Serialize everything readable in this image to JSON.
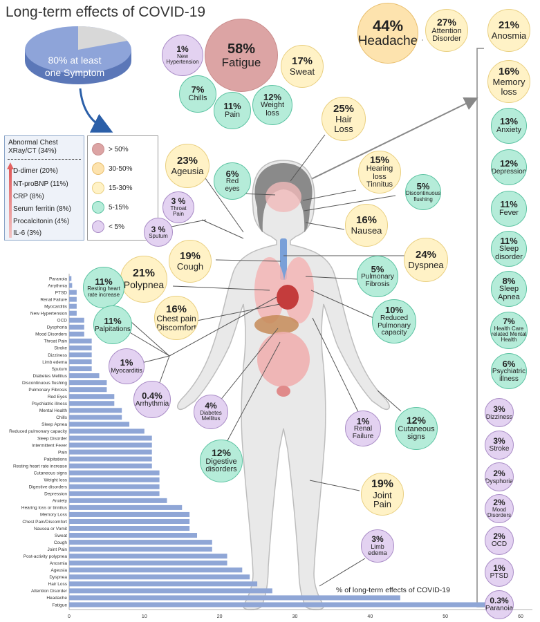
{
  "title": "Long-term effects of COVID-19",
  "pie": {
    "label_line1": "80% at least",
    "label_line2": "one Symptom",
    "value": 80
  },
  "lab_box": {
    "title_line1": "Abnormal Chest",
    "title_line2": "XRay/CT (34%)",
    "items": [
      "D-dimer (20%)",
      "NT-proBNP (11%)",
      "CRP (8%)",
      "Serum ferritin (8%)",
      "Procalcitonin (4%)",
      "IL-6 (3%)"
    ]
  },
  "legend": [
    {
      "label": "> 50%",
      "color": "#dca4a4"
    },
    {
      "label": "30-50%",
      "color": "#fde3ae"
    },
    {
      "label": "15-30%",
      "color": "#fff2c6"
    },
    {
      "label": "5-15%",
      "color": "#b5ecd9"
    },
    {
      "label": "< 5%",
      "color": "#e3d2f1"
    }
  ],
  "bubbles": [
    {
      "pct": "44%",
      "label": "Headache",
      "lines": []
    },
    {
      "pct": "27%",
      "label": "Attention",
      "lines": [
        "Disorder"
      ]
    },
    {
      "pct": "21%",
      "label": "Anosmia",
      "lines": []
    },
    {
      "pct": "16%",
      "label": "Memory",
      "lines": [
        "loss"
      ]
    },
    {
      "pct": "13%",
      "label": "Anxiety",
      "lines": []
    },
    {
      "pct": "12%",
      "label": "Depression",
      "lines": []
    },
    {
      "pct": "11%",
      "label": "Fever",
      "lines": []
    },
    {
      "pct": "11%",
      "label": "Sleep",
      "lines": [
        "disorder"
      ]
    },
    {
      "pct": "8%",
      "label": "Sleep",
      "lines": [
        "Apnea"
      ]
    },
    {
      "pct": "7%",
      "label": "Health Care",
      "lines": [
        "related Mental",
        "Health"
      ]
    },
    {
      "pct": "6%",
      "label": "Psychiatric",
      "lines": [
        "illness"
      ]
    },
    {
      "pct": "3%",
      "label": "Dizziness",
      "lines": []
    },
    {
      "pct": "3%",
      "label": "Stroke",
      "lines": []
    },
    {
      "pct": "2%",
      "label": "Dysphoria",
      "lines": []
    },
    {
      "pct": "2%",
      "label": "Mood",
      "lines": [
        "Disorders"
      ]
    },
    {
      "pct": "2%",
      "label": "OCD",
      "lines": []
    },
    {
      "pct": "1%",
      "label": "PTSD",
      "lines": []
    },
    {
      "pct": "0.3%",
      "label": "Paranoia",
      "lines": []
    },
    {
      "pct": "58%",
      "label": "Fatigue",
      "lines": []
    },
    {
      "pct": "1%",
      "label": "New",
      "lines": [
        "Hypertension"
      ]
    },
    {
      "pct": "17%",
      "label": "Sweat",
      "lines": []
    },
    {
      "pct": "7%",
      "label": "Chills",
      "lines": []
    },
    {
      "pct": "11%",
      "label": "Pain",
      "lines": []
    },
    {
      "pct": "12%",
      "label": "Weight",
      "lines": [
        "loss"
      ]
    },
    {
      "pct": "25%",
      "label": "Hair",
      "lines": [
        "Loss"
      ]
    },
    {
      "pct": "23%",
      "label": "Ageusia",
      "lines": []
    },
    {
      "pct": "6%",
      "label": "Red",
      "lines": [
        "eyes"
      ]
    },
    {
      "pct": "15%",
      "label": "Hearing loss",
      "lines": [
        "Tinnitus"
      ]
    },
    {
      "pct": "5%",
      "label": "Discontinuous",
      "lines": [
        "flushing"
      ]
    },
    {
      "pct": "3 %",
      "label": "Throat",
      "lines": [
        "Pain"
      ]
    },
    {
      "pct": "3 %",
      "label": "Sputum",
      "lines": []
    },
    {
      "pct": "16%",
      "label": "Nausea",
      "lines": []
    },
    {
      "pct": "19%",
      "label": "Cough",
      "lines": []
    },
    {
      "pct": "24%",
      "label": "Dyspnea",
      "lines": []
    },
    {
      "pct": "21%",
      "label": "Polypnea",
      "lines": []
    },
    {
      "pct": "11%",
      "label": "Resting heart",
      "lines": [
        "rate increase"
      ]
    },
    {
      "pct": "5%",
      "label": "Pulmonary",
      "lines": [
        "Fibrosis"
      ]
    },
    {
      "pct": "16%",
      "label": "Chest pain",
      "lines": [
        "Discomfort"
      ]
    },
    {
      "pct": "10%",
      "label": "Reduced",
      "lines": [
        "Pulmonary",
        "capacity"
      ]
    },
    {
      "pct": "11%",
      "label": "Palpitations",
      "lines": []
    },
    {
      "pct": "1%",
      "label": "Myocarditis",
      "lines": []
    },
    {
      "pct": "0.4%",
      "label": "Arrhythmia",
      "lines": []
    },
    {
      "pct": "4%",
      "label": "Diabetes",
      "lines": [
        "Mellitus"
      ]
    },
    {
      "pct": "1%",
      "label": "Renal",
      "lines": [
        "Failure"
      ]
    },
    {
      "pct": "12%",
      "label": "Cutaneous",
      "lines": [
        "signs"
      ]
    },
    {
      "pct": "12%",
      "label": "Digestive",
      "lines": [
        "disorders"
      ]
    },
    {
      "pct": "19%",
      "label": "Joint",
      "lines": [
        "Pain"
      ]
    },
    {
      "pct": "3%",
      "label": "Limb",
      "lines": [
        "edema"
      ]
    }
  ],
  "chart_data": {
    "type": "bar",
    "orientation": "horizontal",
    "title": "% of long-term effects of COVID-19",
    "xlim": [
      0,
      60
    ],
    "xticks": [
      0,
      10,
      20,
      30,
      40,
      50,
      60
    ],
    "categories": [
      "Paranoia",
      "Arrythmia",
      "PTSD",
      "Renal Failure",
      "Myocarditis",
      "New Hypertension",
      "OCD",
      "Dysphoria",
      "Mood Disorders",
      "Throat Pain",
      "Stroke",
      "Dizziness",
      "Limb edema",
      "Sputum",
      "Diabetes Mellitus",
      "Discontinuous flushing",
      "Pulmonary Fibrosis",
      "Red Eyes",
      "Psychiatric illness",
      "Mental Health",
      "Chills",
      "Sleep Apnea",
      "Reduced pulmonary capacity",
      "Sleep Disorder",
      "Intermittent Fever",
      "Pain",
      "Palpitations",
      "Resting heart rate increase",
      "Cutaneous signs",
      "Weight loss",
      "Digestive disorders",
      "Depression",
      "Anxiety",
      "Hearing loss or tinnitus",
      "Memory Loss",
      "Chest Pain/Discomfort",
      "Nausea or Vomit",
      "Sweat",
      "Cough",
      "Joint Pain",
      "Post-activity polypnea",
      "Anosmia",
      "Ageusia",
      "Dyspnea",
      "Hair Loss",
      "Attention Disorder",
      "Headache",
      "Fatigue"
    ],
    "values": [
      0.3,
      0.4,
      1,
      1,
      1,
      1,
      2,
      2,
      2,
      3,
      3,
      3,
      3,
      3,
      4,
      5,
      5,
      6,
      6,
      7,
      7,
      8,
      10,
      11,
      11,
      11,
      11,
      11,
      12,
      12,
      12,
      12,
      13,
      15,
      16,
      16,
      16,
      17,
      19,
      19,
      21,
      21,
      23,
      24,
      25,
      27,
      44,
      58
    ]
  }
}
